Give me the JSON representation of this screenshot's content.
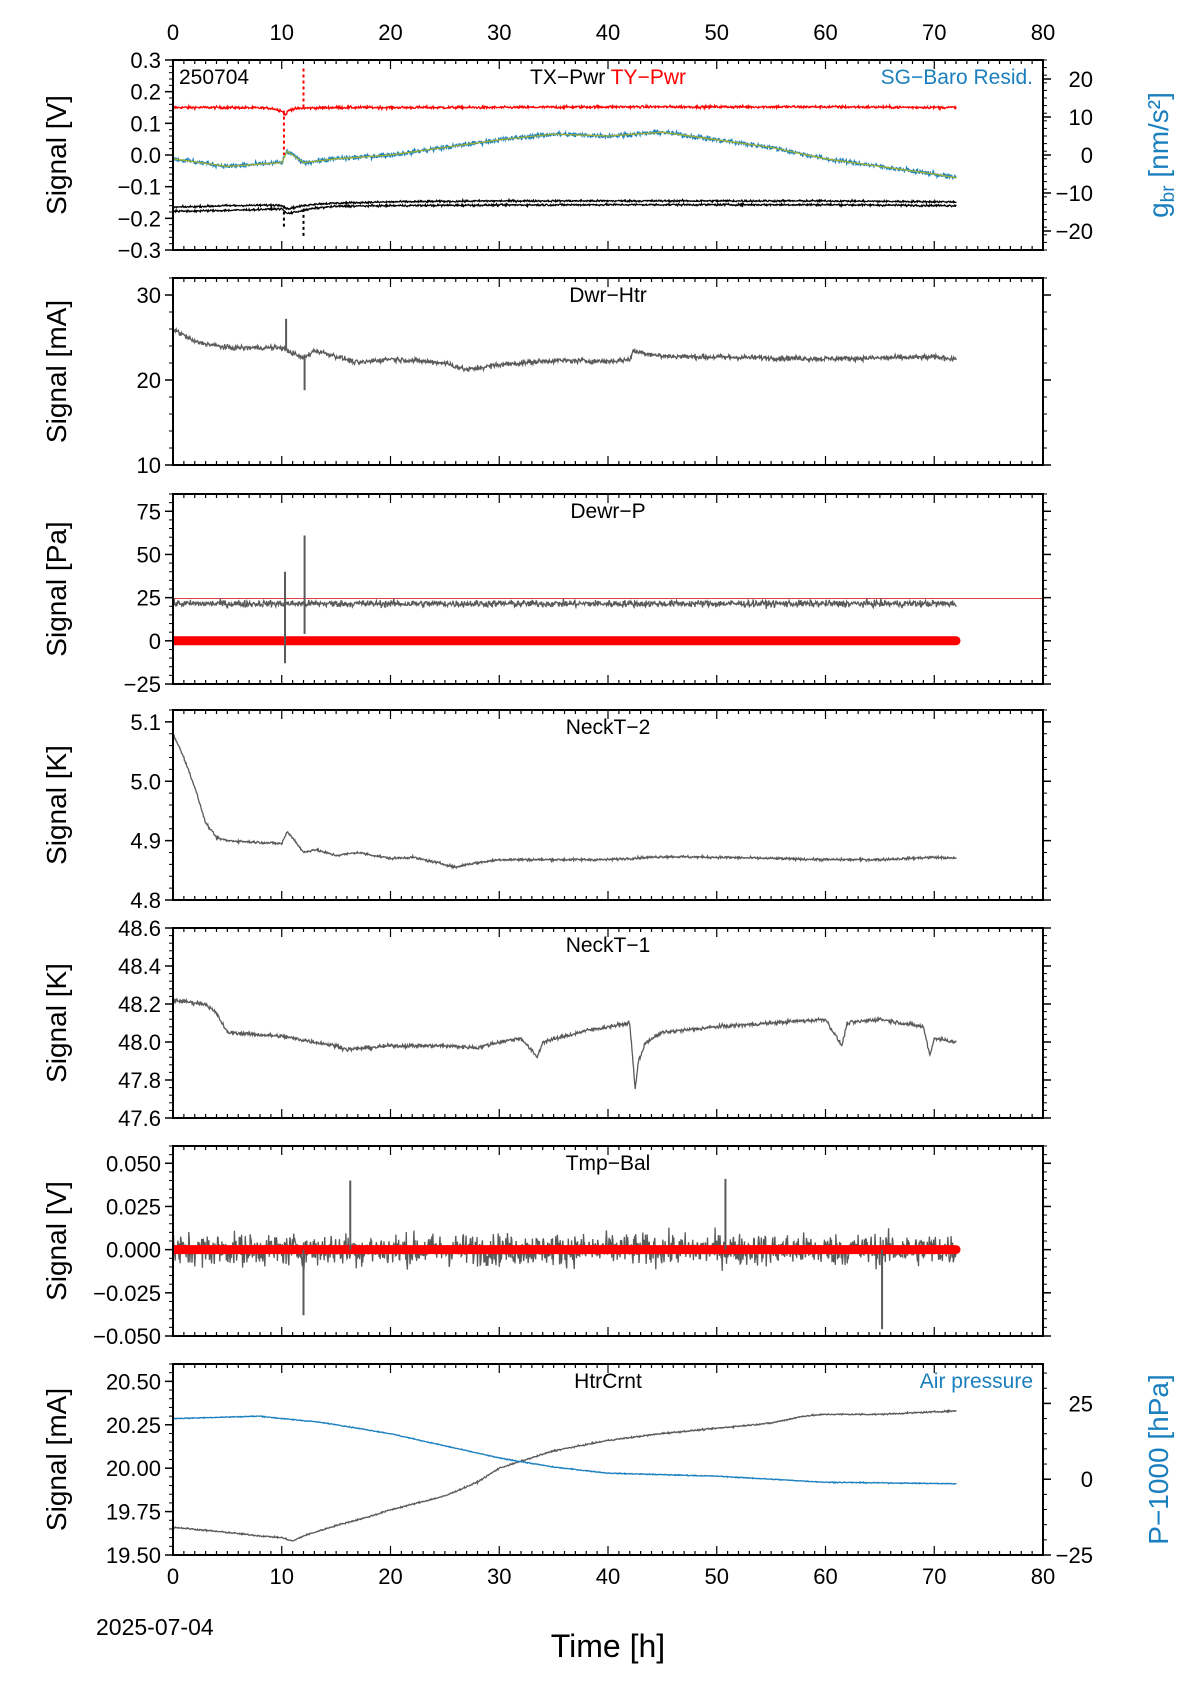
{
  "figure": {
    "date_label": "2025-07-04",
    "time_axis_label": "Time [h]",
    "time_ticks": [
      "0",
      "10",
      "20",
      "30",
      "40",
      "50",
      "60",
      "70",
      "80"
    ]
  },
  "chart_data": [
    {
      "type": "line",
      "panel_label": "250704",
      "title_parts": [
        {
          "text": "TX−Pwr",
          "color": "#000000"
        },
        {
          "text": "TY−Pwr",
          "color": "#ff0000"
        }
      ],
      "right_title": "SG−Baro Resid.",
      "ylabel": "Signal [V]",
      "y2label": "g_br [nm/s²]",
      "xlim": [
        0,
        80
      ],
      "ylim": [
        -0.3,
        0.3
      ],
      "y2lim": [
        -25,
        25
      ],
      "yticks": [
        "0.3",
        "0.2",
        "0.1",
        "0.0",
        "−0.1",
        "−0.2",
        "−0.3"
      ],
      "y2ticks": [
        "20",
        "10",
        "0",
        "−10",
        "−20"
      ],
      "series": [
        {
          "name": "TY−Pwr",
          "color": "#ff0000",
          "axis": "left",
          "noise": 0.004,
          "x": [
            0,
            5,
            9,
            10,
            10.3,
            10.6,
            11,
            12,
            15,
            20,
            30,
            40,
            50,
            60,
            72
          ],
          "y": [
            0.15,
            0.15,
            0.148,
            0.14,
            0.125,
            0.14,
            0.145,
            0.148,
            0.15,
            0.15,
            0.15,
            0.152,
            0.152,
            0.152,
            0.15
          ]
        },
        {
          "name": "TX−Pwr",
          "color": "#000000",
          "axis": "left",
          "noise": 0.003,
          "x": [
            0,
            5,
            10,
            10.5,
            12,
            13,
            15,
            20,
            30,
            40,
            50,
            60,
            72
          ],
          "y": [
            -0.165,
            -0.16,
            -0.158,
            -0.17,
            -0.16,
            -0.155,
            -0.152,
            -0.148,
            -0.145,
            -0.145,
            -0.145,
            -0.145,
            -0.148
          ]
        },
        {
          "name": "TX−Pwr",
          "color": "#000000",
          "axis": "left",
          "noise": 0.003,
          "x": [
            0,
            5,
            10,
            10.5,
            12,
            13,
            15,
            20,
            30,
            40,
            50,
            60,
            72
          ],
          "y": [
            -0.178,
            -0.175,
            -0.17,
            -0.185,
            -0.175,
            -0.168,
            -0.162,
            -0.16,
            -0.158,
            -0.157,
            -0.157,
            -0.157,
            -0.16
          ]
        },
        {
          "name": "SG−Baro Resid.",
          "color": "#1a7fbf",
          "axis": "right",
          "noise": 0.6,
          "x": [
            0,
            5,
            10,
            10.5,
            12,
            15,
            20,
            25,
            30,
            35,
            40,
            45,
            50,
            55,
            60,
            65,
            70,
            72
          ],
          "y": [
            -1,
            -3,
            -2,
            1,
            -2,
            -1,
            0,
            2,
            4,
            5.5,
            5,
            6,
            4,
            2,
            -1,
            -3,
            -5,
            -6
          ]
        },
        {
          "name": "",
          "color": "#a0b030",
          "axis": "right",
          "noise": 0,
          "x": [
            0,
            5,
            10,
            10.5,
            12,
            15,
            20,
            25,
            30,
            35,
            40,
            45,
            50,
            55,
            60,
            65,
            70,
            72
          ],
          "y": [
            -1,
            -3,
            -2,
            1,
            -2,
            -1,
            0,
            2,
            4,
            5.5,
            5,
            6,
            4,
            2,
            -1,
            -3,
            -5,
            -6
          ]
        }
      ],
      "spikes": [
        {
          "x": 10.2,
          "y1": -0.16,
          "y2": -0.23,
          "color": "#000000"
        },
        {
          "x": 10.2,
          "y1": 0.14,
          "y2": 0.0,
          "color": "#ff0000"
        },
        {
          "x": 12,
          "y1": 0.15,
          "y2": 0.28,
          "color": "#ff0000"
        },
        {
          "x": 12,
          "y1": -0.17,
          "y2": -0.26,
          "color": "#000000"
        }
      ]
    },
    {
      "type": "line",
      "title": "Dwr−Htr",
      "ylabel": "Signal [mA]",
      "xlim": [
        0,
        80
      ],
      "ylim": [
        10,
        32
      ],
      "yticks": [
        "30",
        "20",
        "10"
      ],
      "series": [
        {
          "name": "Dwr−Htr",
          "color": "#5a5a5a",
          "noise": 0.3,
          "x": [
            0,
            2,
            5,
            10,
            10.5,
            12,
            13,
            15,
            17,
            20,
            25,
            27,
            30,
            35,
            40,
            42,
            42.3,
            45,
            50,
            60,
            70,
            72
          ],
          "y": [
            26,
            24.5,
            23.8,
            23.8,
            23.5,
            22.5,
            23.5,
            22.8,
            22,
            22.5,
            22,
            21.2,
            21.8,
            22.3,
            22.2,
            22.4,
            23.4,
            22.8,
            22.7,
            22.5,
            22.7,
            22.5
          ]
        }
      ],
      "spikes": [
        {
          "x": 10.4,
          "y1": 23.5,
          "y2": 27.2,
          "color": "#5a5a5a"
        },
        {
          "x": 12.1,
          "y1": 23,
          "y2": 18.8,
          "color": "#5a5a5a"
        }
      ]
    },
    {
      "type": "line",
      "title": "Dewr−P",
      "ylabel": "Signal [Pa]",
      "xlim": [
        0,
        80
      ],
      "ylim": [
        -25,
        85
      ],
      "yticks": [
        "75",
        "50",
        "25",
        "0",
        "−25"
      ],
      "hline": {
        "y": 24.5,
        "color": "#e04040"
      },
      "series": [
        {
          "name": "Dewr−P",
          "color": "#5a5a5a",
          "noise": 2.0,
          "x": [
            0,
            72
          ],
          "y": [
            21.5,
            21.5
          ]
        },
        {
          "name": "",
          "color": "#ff0000",
          "width": 9,
          "noise": 0,
          "x": [
            0,
            72
          ],
          "y": [
            0,
            0
          ]
        }
      ],
      "spikes": [
        {
          "x": 10.3,
          "y1": 40,
          "y2": -13,
          "color": "#5a5a5a"
        },
        {
          "x": 12.1,
          "y1": 61,
          "y2": 4,
          "color": "#5a5a5a"
        }
      ]
    },
    {
      "type": "line",
      "title": "NeckT−2",
      "ylabel": "Signal [K]",
      "xlim": [
        0,
        80
      ],
      "ylim": [
        4.8,
        5.12
      ],
      "yticks": [
        "5.1",
        "5.0",
        "4.9",
        "4.8"
      ],
      "series": [
        {
          "name": "NeckT−2",
          "color": "#5a5a5a",
          "noise": 0.002,
          "x": [
            0,
            1,
            2,
            3,
            4,
            5,
            7,
            10,
            10.5,
            11,
            12,
            13,
            15,
            17,
            20,
            22,
            25,
            26,
            27,
            30,
            40,
            45,
            50,
            60,
            65,
            70,
            72
          ],
          "y": [
            5.08,
            5.04,
            4.99,
            4.93,
            4.905,
            4.9,
            4.898,
            4.895,
            4.915,
            4.905,
            4.88,
            4.885,
            4.875,
            4.88,
            4.87,
            4.872,
            4.86,
            4.855,
            4.86,
            4.868,
            4.868,
            4.873,
            4.872,
            4.868,
            4.868,
            4.872,
            4.87
          ]
        }
      ]
    },
    {
      "type": "line",
      "title": "NeckT−1",
      "ylabel": "Signal [K]",
      "xlim": [
        0,
        80
      ],
      "ylim": [
        47.6,
        48.6
      ],
      "yticks": [
        "48.6",
        "48.4",
        "48.2",
        "48.0",
        "47.8",
        "47.6"
      ],
      "series": [
        {
          "name": "NeckT−1",
          "color": "#5a5a5a",
          "noise": 0.01,
          "x": [
            0,
            3,
            4,
            5,
            10,
            15,
            16,
            20,
            25,
            28,
            30,
            32,
            33.5,
            34,
            38,
            42,
            42.5,
            42.8,
            43.5,
            45,
            50,
            55,
            60,
            61.5,
            62,
            65,
            69,
            69.6,
            70,
            72
          ],
          "y": [
            48.22,
            48.2,
            48.15,
            48.05,
            48.03,
            47.98,
            47.96,
            47.98,
            47.98,
            47.97,
            48.0,
            48.02,
            47.92,
            48.0,
            48.06,
            48.1,
            47.75,
            47.9,
            48.0,
            48.05,
            48.08,
            48.1,
            48.12,
            47.98,
            48.1,
            48.12,
            48.08,
            47.93,
            48.02,
            48.0
          ]
        }
      ]
    },
    {
      "type": "line",
      "title": "Tmp−Bal",
      "ylabel": "Signal [V]",
      "xlim": [
        0,
        80
      ],
      "ylim": [
        -0.05,
        0.06
      ],
      "yticks": [
        "0.050",
        "0.025",
        "0.000",
        "−0.025",
        "−0.050"
      ],
      "series": [
        {
          "name": "Tmp−Bal",
          "color": "#5a5a5a",
          "noise": 0.009,
          "x": [
            0,
            72
          ],
          "y": [
            0,
            0
          ]
        },
        {
          "name": "",
          "color": "#ff0000",
          "width": 9,
          "noise": 0,
          "x": [
            0,
            72
          ],
          "y": [
            0,
            0
          ]
        }
      ],
      "spikes": [
        {
          "x": 65.2,
          "y1": 0.0,
          "y2": -0.046,
          "color": "#5a5a5a"
        },
        {
          "x": 16.3,
          "y1": 0.0,
          "y2": 0.04,
          "color": "#5a5a5a"
        },
        {
          "x": 50.8,
          "y1": 0.0,
          "y2": 0.041,
          "color": "#5a5a5a"
        },
        {
          "x": 12,
          "y1": 0.0,
          "y2": -0.038,
          "color": "#5a5a5a"
        }
      ]
    },
    {
      "type": "line",
      "title": "HtrCrnt",
      "right_title": "Air pressure",
      "ylabel": "Signal [mA]",
      "y2label": "P−1000 [hPa]",
      "xlim": [
        0,
        80
      ],
      "ylim": [
        19.5,
        20.6
      ],
      "y2lim": [
        -25,
        38
      ],
      "yticks": [
        "20.50",
        "20.25",
        "20.00",
        "19.75",
        "19.50"
      ],
      "y2ticks": [
        "25",
        "0",
        "−25"
      ],
      "series": [
        {
          "name": "HtrCrnt",
          "color": "#5a5a5a",
          "axis": "left",
          "noise": 0.004,
          "x": [
            0,
            5,
            8,
            10,
            11,
            12,
            15,
            18,
            20,
            25,
            28,
            30,
            35,
            40,
            45,
            50,
            55,
            58,
            60,
            65,
            72
          ],
          "y": [
            19.66,
            19.63,
            19.61,
            19.6,
            19.58,
            19.61,
            19.67,
            19.72,
            19.76,
            19.84,
            19.92,
            20.0,
            20.1,
            20.16,
            20.2,
            20.23,
            20.26,
            20.3,
            20.31,
            20.31,
            20.33
          ]
        },
        {
          "name": "Air pressure",
          "color": "#1a7fbf",
          "axis": "right",
          "noise": 0.15,
          "x": [
            0,
            5,
            8,
            10,
            13,
            15,
            20,
            25,
            30,
            35,
            40,
            45,
            50,
            55,
            60,
            65,
            72
          ],
          "y": [
            20,
            20.5,
            20.8,
            20,
            19,
            18,
            15,
            11,
            7,
            4,
            2,
            1.5,
            1,
            0,
            -1,
            -1.2,
            -1.5
          ]
        }
      ]
    }
  ]
}
